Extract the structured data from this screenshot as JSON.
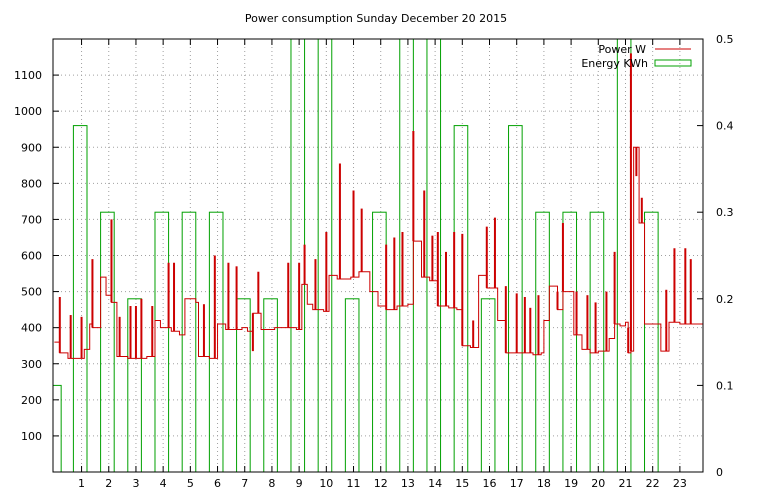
{
  "chart_data": {
    "type": "line",
    "title": "Power consumption Sunday December 20 2015",
    "xlabel": "",
    "ylabel": "",
    "xlim": [
      -0.05,
      23.85
    ],
    "ylim": [
      0,
      1200
    ],
    "y2lim": [
      0,
      0.5
    ],
    "x_ticks": [
      1,
      2,
      3,
      4,
      5,
      6,
      7,
      8,
      9,
      10,
      11,
      12,
      13,
      14,
      15,
      16,
      17,
      18,
      19,
      20,
      21,
      22,
      23
    ],
    "y_ticks": [
      100,
      200,
      300,
      400,
      500,
      600,
      700,
      800,
      900,
      1000,
      1100
    ],
    "y2_ticks": [
      0,
      0.1,
      0.2,
      0.3,
      0.4,
      0.5
    ],
    "grid": true,
    "legend_position": "top-right",
    "series": [
      {
        "name": "Power W",
        "kind": "step-line",
        "axis": "y",
        "color": "#cc0000",
        "points": [
          [
            0.0,
            360
          ],
          [
            0.2,
            330
          ],
          [
            0.5,
            315
          ],
          [
            1.1,
            340
          ],
          [
            1.3,
            410
          ],
          [
            1.4,
            400
          ],
          [
            1.7,
            540
          ],
          [
            1.9,
            490
          ],
          [
            2.1,
            470
          ],
          [
            2.3,
            320
          ],
          [
            2.7,
            315
          ],
          [
            3.4,
            320
          ],
          [
            3.7,
            420
          ],
          [
            3.9,
            400
          ],
          [
            4.3,
            390
          ],
          [
            4.6,
            380
          ],
          [
            4.8,
            480
          ],
          [
            5.2,
            470
          ],
          [
            5.3,
            320
          ],
          [
            5.7,
            315
          ],
          [
            6.0,
            410
          ],
          [
            6.3,
            395
          ],
          [
            6.9,
            400
          ],
          [
            7.1,
            390
          ],
          [
            7.3,
            440
          ],
          [
            7.6,
            395
          ],
          [
            8.1,
            400
          ],
          [
            8.5,
            400
          ],
          [
            8.9,
            395
          ],
          [
            9.1,
            520
          ],
          [
            9.3,
            465
          ],
          [
            9.5,
            450
          ],
          [
            9.9,
            445
          ],
          [
            10.1,
            545
          ],
          [
            10.4,
            535
          ],
          [
            10.9,
            540
          ],
          [
            11.2,
            555
          ],
          [
            11.6,
            500
          ],
          [
            11.9,
            460
          ],
          [
            12.2,
            450
          ],
          [
            12.6,
            460
          ],
          [
            13.0,
            465
          ],
          [
            13.2,
            640
          ],
          [
            13.5,
            540
          ],
          [
            13.8,
            530
          ],
          [
            14.1,
            460
          ],
          [
            14.5,
            455
          ],
          [
            14.8,
            450
          ],
          [
            15.0,
            350
          ],
          [
            15.3,
            345
          ],
          [
            15.6,
            545
          ],
          [
            15.9,
            510
          ],
          [
            16.3,
            420
          ],
          [
            16.6,
            330
          ],
          [
            17.0,
            330
          ],
          [
            17.4,
            330
          ],
          [
            17.6,
            325
          ],
          [
            17.9,
            330
          ],
          [
            18.0,
            420
          ],
          [
            18.2,
            515
          ],
          [
            18.5,
            450
          ],
          [
            18.7,
            500
          ],
          [
            18.9,
            500
          ],
          [
            19.1,
            380
          ],
          [
            19.4,
            340
          ],
          [
            19.7,
            330
          ],
          [
            20.0,
            335
          ],
          [
            20.4,
            370
          ],
          [
            20.6,
            410
          ],
          [
            20.8,
            405
          ],
          [
            21.0,
            415
          ],
          [
            21.1,
            330
          ],
          [
            21.2,
            335
          ],
          [
            21.3,
            900
          ],
          [
            21.5,
            690
          ],
          [
            21.7,
            410
          ],
          [
            22.3,
            335
          ],
          [
            22.6,
            415
          ],
          [
            23.0,
            410
          ],
          [
            23.85,
            410
          ]
        ],
        "spikes": [
          [
            0.2,
            485
          ],
          [
            0.6,
            435
          ],
          [
            1.0,
            430
          ],
          [
            1.4,
            590
          ],
          [
            2.1,
            700
          ],
          [
            2.4,
            430
          ],
          [
            2.8,
            460
          ],
          [
            3.0,
            460
          ],
          [
            3.2,
            480
          ],
          [
            3.6,
            460
          ],
          [
            4.2,
            580
          ],
          [
            4.4,
            580
          ],
          [
            5.5,
            465
          ],
          [
            5.9,
            600
          ],
          [
            6.4,
            580
          ],
          [
            6.7,
            570
          ],
          [
            7.3,
            335
          ],
          [
            7.5,
            555
          ],
          [
            8.6,
            580
          ],
          [
            9.0,
            580
          ],
          [
            9.2,
            630
          ],
          [
            9.6,
            590
          ],
          [
            10.0,
            665
          ],
          [
            10.5,
            855
          ],
          [
            11.0,
            780
          ],
          [
            11.3,
            730
          ],
          [
            12.2,
            630
          ],
          [
            12.5,
            650
          ],
          [
            12.8,
            665
          ],
          [
            13.2,
            945
          ],
          [
            13.6,
            780
          ],
          [
            13.9,
            655
          ],
          [
            14.1,
            665
          ],
          [
            14.4,
            610
          ],
          [
            14.7,
            665
          ],
          [
            15.0,
            660
          ],
          [
            15.4,
            420
          ],
          [
            15.9,
            680
          ],
          [
            16.2,
            705
          ],
          [
            16.6,
            515
          ],
          [
            17.0,
            495
          ],
          [
            17.3,
            485
          ],
          [
            17.5,
            455
          ],
          [
            17.8,
            490
          ],
          [
            18.5,
            500
          ],
          [
            18.7,
            690
          ],
          [
            19.2,
            500
          ],
          [
            19.6,
            490
          ],
          [
            19.9,
            470
          ],
          [
            20.3,
            500
          ],
          [
            20.6,
            610
          ],
          [
            21.1,
            400
          ],
          [
            21.2,
            1160
          ],
          [
            21.4,
            820
          ],
          [
            21.6,
            760
          ],
          [
            22.5,
            505
          ],
          [
            22.8,
            620
          ],
          [
            23.2,
            620
          ],
          [
            23.4,
            590
          ]
        ]
      },
      {
        "name": "Energy KWh",
        "kind": "boxes",
        "axis": "y2",
        "color": "#00a000",
        "boxes": [
          [
            -0.05,
            0.25,
            0.1
          ],
          [
            0.7,
            1.2,
            0.4
          ],
          [
            1.7,
            2.2,
            0.3
          ],
          [
            2.7,
            3.2,
            0.2
          ],
          [
            3.7,
            4.2,
            0.3
          ],
          [
            4.7,
            5.2,
            0.3
          ],
          [
            5.7,
            6.2,
            0.3
          ],
          [
            6.7,
            7.2,
            0.2
          ],
          [
            7.7,
            8.2,
            0.2
          ],
          [
            8.7,
            9.2,
            0.5
          ],
          [
            9.7,
            10.2,
            0.5
          ],
          [
            10.7,
            11.2,
            0.2
          ],
          [
            11.7,
            12.2,
            0.3
          ],
          [
            12.7,
            13.2,
            0.5
          ],
          [
            13.7,
            14.2,
            0.5
          ],
          [
            14.7,
            15.2,
            0.4
          ],
          [
            15.7,
            16.2,
            0.2
          ],
          [
            16.7,
            17.2,
            0.4
          ],
          [
            17.7,
            18.2,
            0.3
          ],
          [
            18.7,
            19.2,
            0.3
          ],
          [
            19.7,
            20.2,
            0.3
          ],
          [
            20.7,
            21.2,
            0.5
          ],
          [
            21.7,
            22.2,
            0.3
          ]
        ]
      }
    ]
  }
}
